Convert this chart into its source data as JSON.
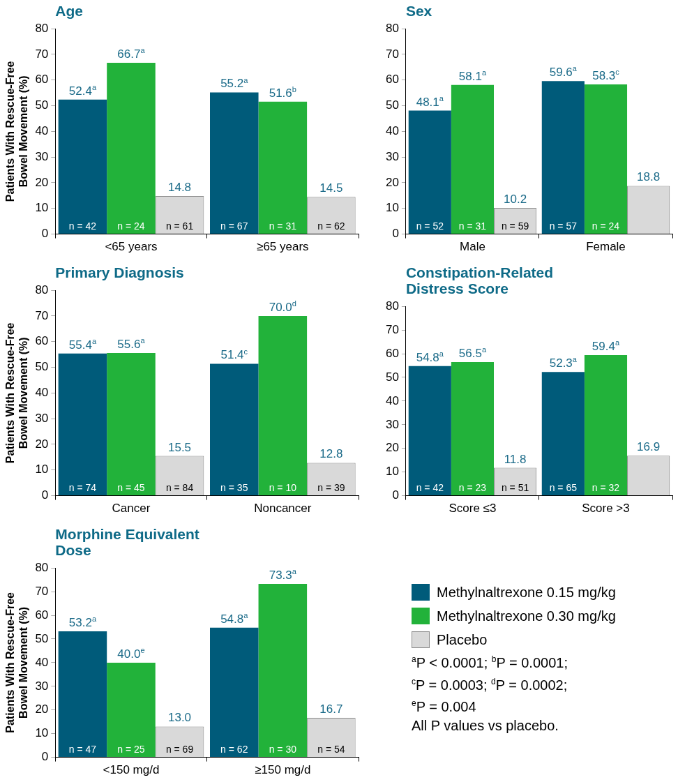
{
  "chart_data": [
    {
      "type": "bar",
      "title": "Age",
      "ylabel": "Patients With Rescue-Free Bowel Movement (%)",
      "categories": [
        "<65 years",
        "≥65 years"
      ],
      "ylim": [
        0,
        80
      ],
      "yticks": [
        0,
        10,
        20,
        30,
        40,
        50,
        60,
        70,
        80
      ],
      "grid": false,
      "legend": false,
      "series": [
        {
          "color": "#005b7a",
          "values": [
            52.4,
            55.2
          ],
          "value_labels": [
            "52.4$^{a}$",
            "55.2$^{a}$"
          ]
        },
        {
          "color": "#22b23a",
          "values": [
            66.7,
            51.6
          ],
          "value_labels": [
            "66.7$^{a}$",
            "51.6$^{b}$"
          ]
        },
        {
          "color": "#d9d9d9",
          "values": [
            14.8,
            14.5
          ],
          "value_labels": [
            "14.8",
            "14.5"
          ]
        }
      ],
      "annotations": [
        "n = 42",
        "n = 24",
        "n = 61",
        "n = 67",
        "n = 31",
        "n = 62"
      ]
    },
    {
      "type": "bar",
      "title": "Sex",
      "categories": [
        "Male",
        "Female"
      ],
      "ylim": [
        0,
        80
      ],
      "yticks": [
        0,
        10,
        20,
        30,
        40,
        50,
        60,
        70,
        80
      ],
      "grid": false,
      "legend": false,
      "series": [
        {
          "color": "#005b7a",
          "values": [
            48.1,
            59.6
          ],
          "value_labels": [
            "48.1$^{a}$",
            "59.6$^{a}$"
          ]
        },
        {
          "color": "#22b23a",
          "values": [
            58.1,
            58.3
          ],
          "value_labels": [
            "58.1$^{a}$",
            "58.3$^{c}$"
          ]
        },
        {
          "color": "#d9d9d9",
          "values": [
            10.2,
            18.8
          ],
          "value_labels": [
            "10.2",
            "18.8"
          ]
        }
      ],
      "annotations": [
        "n = 52",
        "n = 31",
        "n = 59",
        "n = 57",
        "n = 24"
      ]
    },
    {
      "type": "bar",
      "title": "Primary Diagnosis",
      "ylabel": "Patients With Rescue-Free Bowel Movement (%)",
      "categories": [
        "Cancer",
        "Noncancer"
      ],
      "ylim": [
        0,
        80
      ],
      "yticks": [
        0,
        10,
        20,
        30,
        40,
        50,
        60,
        70,
        80
      ],
      "grid": false,
      "legend": false,
      "series": [
        {
          "color": "#005b7a",
          "values": [
            55.4,
            51.4
          ],
          "value_labels": [
            "55.4$^{a}$",
            "51.4$^{c}$"
          ]
        },
        {
          "color": "#22b23a",
          "values": [
            55.6,
            70.0
          ],
          "value_labels": [
            "55.6$^{a}$",
            "70.0$^{d}$"
          ]
        },
        {
          "color": "#d9d9d9",
          "values": [
            15.5,
            12.8
          ],
          "value_labels": [
            "15.5",
            "12.8"
          ]
        }
      ],
      "annotations": [
        "n = 74",
        "n = 45",
        "n = 84",
        "n = 35",
        "n = 10",
        "n = 39"
      ]
    },
    {
      "type": "bar",
      "title": "Constipation-Related Distress Score",
      "categories": [
        "Score ≤3",
        "Score >3"
      ],
      "ylim": [
        0,
        80
      ],
      "yticks": [
        0,
        10,
        20,
        30,
        40,
        50,
        60,
        70,
        80
      ],
      "grid": false,
      "legend": false,
      "series": [
        {
          "color": "#005b7a",
          "values": [
            54.8,
            52.3
          ],
          "value_labels": [
            "54.8$^{a}$",
            "52.3$^{a}$"
          ]
        },
        {
          "color": "#22b23a",
          "values": [
            56.5,
            59.4
          ],
          "value_labels": [
            "56.5$^{a}$",
            "59.4$^{a}$"
          ]
        },
        {
          "color": "#d9d9d9",
          "values": [
            11.8,
            16.9
          ],
          "value_labels": [
            "11.8",
            "16.9"
          ]
        }
      ],
      "annotations": [
        "n = 42",
        "n = 23",
        "n = 51",
        "n = 65",
        "n = 32"
      ]
    },
    {
      "type": "bar",
      "title": "Morphine Equivalent Dose",
      "ylabel": "Patients With Rescue-Free Bowel Movement (%)",
      "categories": [
        "<150 mg/d",
        "≥150 mg/d"
      ],
      "ylim": [
        0,
        80
      ],
      "yticks": [
        0,
        10,
        20,
        30,
        40,
        50,
        60,
        70,
        80
      ],
      "grid": false,
      "legend": "right",
      "series": [
        {
          "name": "Methylnaltrexone 0.15 mg/kg",
          "color": "#005b7a",
          "values": [
            53.2,
            54.8
          ],
          "value_labels": [
            "53.2$^{a}$",
            "54.8$^{a}$"
          ]
        },
        {
          "name": "Methylnaltrexone 0.30 mg/kg",
          "color": "#22b23a",
          "values": [
            40.0,
            73.3
          ],
          "value_labels": [
            "40.0$^{e}$",
            "73.3$^{a}$"
          ]
        },
        {
          "name": "Placebo",
          "color": "#d9d9d9",
          "values": [
            13.0,
            16.7
          ],
          "value_labels": [
            "13.0",
            "16.7"
          ]
        }
      ],
      "annotations": [
        "n = 47",
        "n = 25",
        "n = 69",
        "n = 62",
        "n = 30",
        "n = 54"
      ]
    },
    {
      "type": "other",
      "annotations": [
        "$^{a}$P < 0.0001; $^{b}$P = 0.0001;",
        "$^{c}$P = 0.0003; $^{d}$P = 0.0002;",
        "$^{e}$P = 0.004",
        "All P values vs placebo."
      ]
    }
  ]
}
